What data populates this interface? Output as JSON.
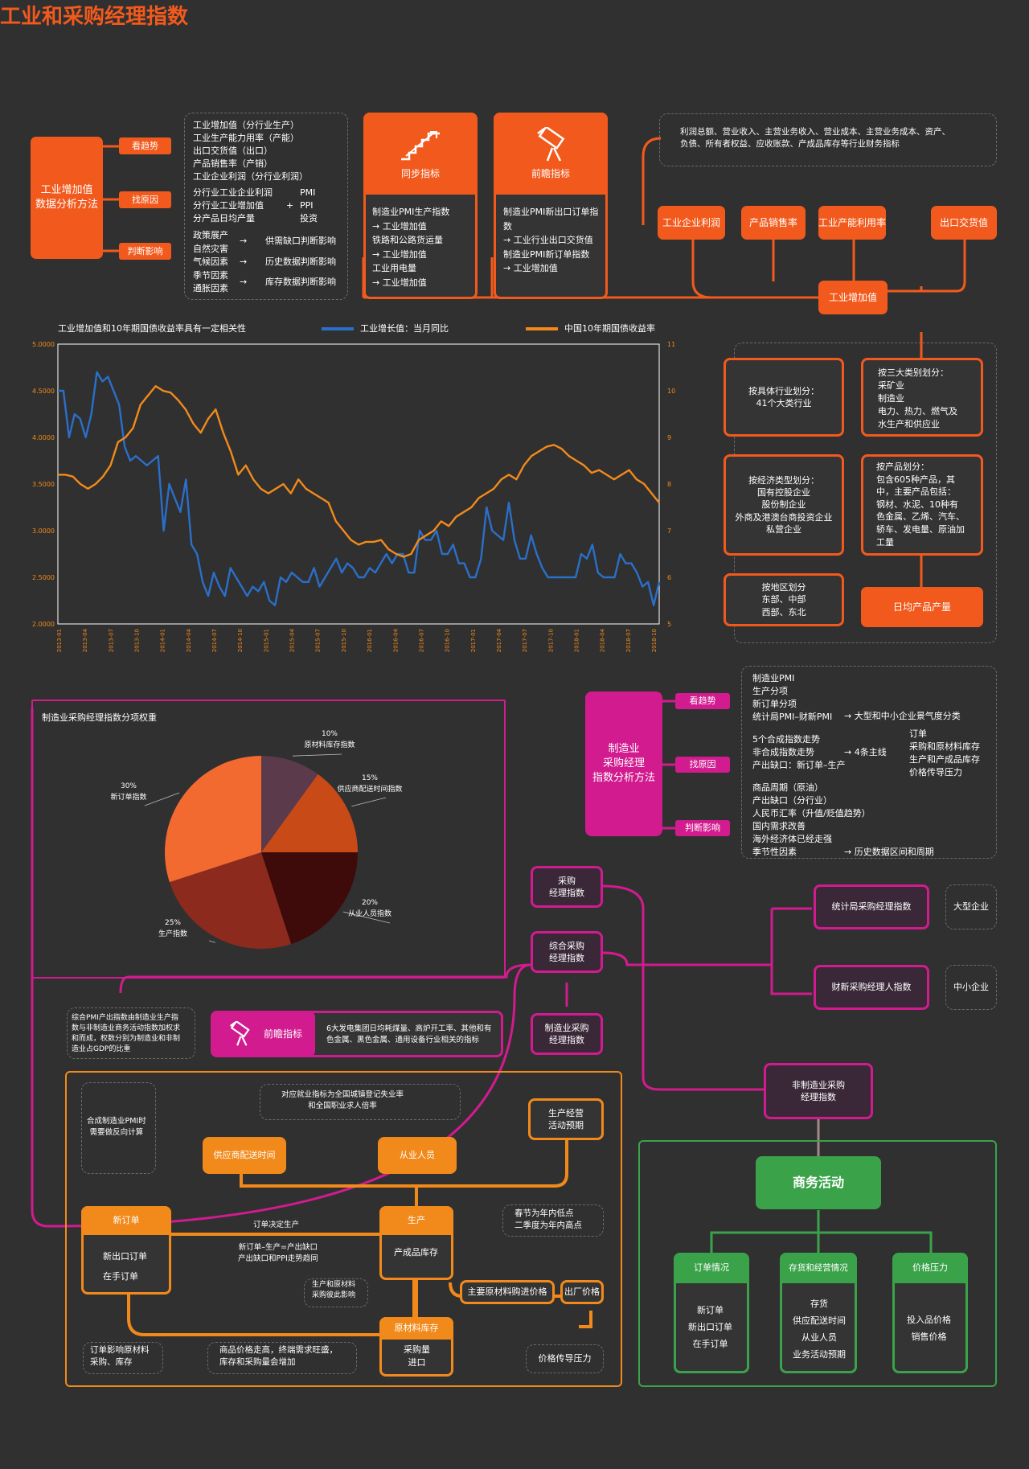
{
  "title": "工业和采购经理指数",
  "s1": {
    "main": [
      "工业增加值",
      "数据分析方法"
    ],
    "tags": [
      "看趋势",
      "找原因",
      "判断影响"
    ],
    "trend": [
      "工业增加值（分行业生产）",
      "工业生产能力用率（产能）",
      "出口交货值（出口）",
      "产品销售率（产销）",
      "工业企业利润（分行业利润）"
    ],
    "reason_left": [
      "分行业工业企业利润",
      "分行业工业增加值",
      "分产品日均产量"
    ],
    "reason_plus": "+",
    "reason_right": [
      "PMI",
      "PPI",
      "投资"
    ],
    "impact": [
      [
        "政策展产",
        ""
      ],
      [
        "自然灾害",
        "供需缺口判断影响"
      ],
      [
        "气候因素",
        ""
      ],
      [
        "季节因素",
        "历史数据判断影响"
      ],
      [
        "通胀因素",
        "库存数据判断影响"
      ]
    ],
    "sync_title": "同步指标",
    "sync_items": [
      "制造业PMI生产指数",
      "→ 工业增加值",
      "铁路和公路货运量",
      "→ 工业增加值",
      "工业用电量",
      "→ 工业增加值"
    ],
    "lead_title": "前瞻指标",
    "lead_items": [
      "制造业PMI新出口订单指数",
      "→ 工业行业出口交货值",
      "制造业PMI新订单指数",
      "→ 工业增加值"
    ],
    "fin_text": [
      "利润总额、营业收入、主营业务收入、营业成本、主营业务成本、资产、",
      "负债、所有者权益、应收账款、产成品库存等行业财务指标"
    ],
    "nodes": [
      "工业企业利润",
      "产品销售率",
      "工业产能利用率",
      "出口交货值"
    ],
    "center": "工业增加值"
  },
  "chart_data": {
    "type": "line",
    "title": "工业增加值和10年期国债收益率具有一定相关性",
    "series": [
      {
        "name": "工业增长值：当月同比",
        "color": "#2a6fc9",
        "axis": "right",
        "values": [
          10.0,
          10.0,
          9.0,
          9.5,
          9.4,
          9.0,
          9.5,
          10.4,
          10.2,
          10.3,
          10.0,
          9.7,
          8.8,
          8.5,
          8.6,
          8.5,
          8.4,
          8.5,
          8.6,
          7.0,
          8.0,
          7.7,
          7.4,
          8.1,
          6.7,
          6.5,
          5.9,
          5.6,
          6.1,
          5.8,
          5.6,
          6.2,
          6.0,
          5.8,
          5.6,
          5.8,
          5.7,
          5.9,
          5.5,
          5.4,
          6.0,
          5.9,
          6.1,
          6.0,
          5.9,
          5.9,
          6.2,
          5.8,
          6.0,
          6.2,
          6.4,
          6.1,
          6.3,
          6.2,
          6.0,
          6.0,
          6.2,
          6.1,
          6.3,
          6.5,
          6.3,
          6.5,
          6.5,
          6.1,
          6.1,
          7.0,
          6.8,
          6.8,
          7.0,
          6.5,
          6.5,
          6.7,
          6.3,
          6.3,
          6.0,
          6.0,
          6.4,
          7.5,
          7.0,
          6.9,
          6.8,
          7.6,
          6.8,
          6.4,
          6.4,
          6.9,
          6.5,
          6.2,
          6.0,
          6.0,
          6.0,
          6.0,
          6.0,
          6.0,
          6.5,
          6.4,
          6.7,
          6.1,
          6.0,
          6.0,
          6.0,
          6.5,
          6.3,
          6.3,
          6.1,
          5.8,
          5.9,
          5.4,
          5.9
        ]
      },
      {
        "name": "中国10年期国债收益率",
        "color": "#f28a1b",
        "axis": "left",
        "values": [
          3.6,
          3.6,
          3.58,
          3.5,
          3.45,
          3.5,
          3.58,
          3.7,
          3.95,
          4.0,
          4.1,
          4.35,
          4.45,
          4.55,
          4.5,
          4.48,
          4.4,
          4.3,
          4.15,
          4.05,
          4.2,
          4.3,
          4.05,
          3.85,
          3.6,
          3.7,
          3.55,
          3.45,
          3.4,
          3.45,
          3.5,
          3.4,
          3.55,
          3.45,
          3.4,
          3.35,
          3.3,
          3.1,
          3.0,
          2.9,
          2.85,
          2.88,
          2.88,
          2.9,
          2.8,
          2.75,
          2.72,
          2.75,
          2.9,
          2.95,
          3.0,
          3.1,
          3.05,
          3.15,
          3.2,
          3.25,
          3.35,
          3.4,
          3.45,
          3.55,
          3.6,
          3.55,
          3.7,
          3.8,
          3.85,
          3.9,
          3.92,
          3.88,
          3.8,
          3.75,
          3.7,
          3.62,
          3.65,
          3.6,
          3.55,
          3.6,
          3.65,
          3.55,
          3.5,
          3.4,
          3.3
        ]
      }
    ],
    "x_ticks": [
      "2013-01",
      "2013-04",
      "2013-07",
      "2013-10",
      "2014-01",
      "2014-04",
      "2014-07",
      "2014-10",
      "2015-01",
      "2015-04",
      "2015-07",
      "2015-10",
      "2016-01",
      "2016-04",
      "2016-07",
      "2016-10",
      "2017-01",
      "2017-04",
      "2017-07",
      "2017-10",
      "2018-01",
      "2018-04",
      "2018-07",
      "2018-10"
    ],
    "y_left": {
      "min": 2.0,
      "max": 5.0,
      "ticks": [
        "2.0000",
        "2.5000",
        "3.0000",
        "3.5000",
        "4.0000",
        "4.5000",
        "5.0000"
      ]
    },
    "y_right": {
      "min": 5,
      "max": 11,
      "ticks": [
        "5",
        "6",
        "7",
        "8",
        "9",
        "10",
        "11"
      ]
    },
    "grid": false,
    "legend": "top"
  },
  "s2": {
    "industry": "按具体行业划分：\n41个大类行业",
    "three": [
      "按三大类别划分：",
      "采矿业",
      "制造业",
      "电力、热力、燃气及",
      "水生产和供应业"
    ],
    "econ": [
      "按经济类型划分：",
      "国有控股企业",
      "股份制企业",
      "外商及港澳台商投资企业",
      "私营企业"
    ],
    "product": [
      "按产品划分：",
      "包含605种产品，其",
      "中，主要产品包括：",
      "钢材、水泥、10种有",
      "色金属、乙烯、汽车、",
      "轿车、发电量、原油加",
      "工量"
    ],
    "region": [
      "按地区划分",
      "东部、中部",
      "西部、东北"
    ],
    "daily": "日均产品产量"
  },
  "pie": {
    "title": "制造业采购经理指数分项权重",
    "slices": [
      {
        "label": "原材料库存指数",
        "pct": 10,
        "value": "10%",
        "color": "#5b3a4c"
      },
      {
        "label": "供应商配送时间指数",
        "pct": 15,
        "value": "15%",
        "color": "#c74a17"
      },
      {
        "label": "从业人员指数",
        "pct": 20,
        "value": "20%",
        "color": "#3e0a0a"
      },
      {
        "label": "生产指数",
        "pct": 25,
        "value": "25%",
        "color": "#8c2a1e"
      },
      {
        "label": "新订单指数",
        "pct": 30,
        "value": "30%",
        "color": "#f26a30"
      }
    ]
  },
  "s3": {
    "main": [
      "制造业",
      "采购经理",
      "指数分析方法"
    ],
    "tags": [
      "看趋势",
      "找原因",
      "判断影响"
    ],
    "trend": [
      "制造业PMI",
      "生产分项",
      "新订单分项"
    ],
    "trend_last": "统计局PMI–财新PMI",
    "trend_arrow": "大型和中小企业景气度分类",
    "reason": [
      "5个合成指数走势",
      "非合成指数走势",
      "产出缺口：新订单–生产"
    ],
    "reason_mid": "4条主线",
    "reason_right": [
      "订单",
      "采购和原材料库存",
      "生产和产成品库存",
      "价格传导压力"
    ],
    "impact": [
      "商品周期（原油）",
      "产出缺口（分行业）",
      "人民币汇率（升值/贬值趋势）",
      "国内需求改善",
      "海外经济体已经走强",
      "季节性因素"
    ],
    "impact_arrow": "历史数据区间和周期"
  },
  "s4": {
    "purchase": [
      "采购",
      "经理指数"
    ],
    "composite": [
      "综合采购",
      "经理指数"
    ],
    "mfg": [
      "制造业采购",
      "经理指数"
    ],
    "nonmfg": [
      "非制造业采购",
      "经理指数"
    ],
    "nbs": "统计局采购经理指数",
    "caixin": "财新采购经理人指数",
    "large": "大型企业",
    "sme": "中小企业",
    "note": [
      "综合PMI产出指数由制造业生产指",
      "数与非制造业商务活动指数加权求",
      "和而成，权数分别为制造业和非制",
      "造业占GDP的比重"
    ],
    "lead_label": "前瞻指标",
    "lead_text": [
      "6大发电集团日均耗煤量、高炉开工率、其他和有",
      "色金属、黑色金属、通用设备行业相关的指标"
    ]
  },
  "s5": {
    "emp_note": [
      "对应就业指标为全国城镇登记失业率",
      "和全国职业求人倍率"
    ],
    "pmi_note": [
      "合成制造业PMI时",
      "需要做反向计算"
    ],
    "supplier": "供应商配送时间",
    "staff": "从业人员",
    "expect": [
      "生产经营",
      "活动预期"
    ],
    "order_head": "新订单",
    "order_body": [
      "新出口订单",
      "在手订单"
    ],
    "order_decide": "订单决定生产",
    "gap": [
      "新订单–生产=产出缺口",
      "产出缺口和PPI走势趋同"
    ],
    "prod_head": "生产",
    "prod_body": "产成品库存",
    "season": [
      "春节为年内低点",
      "二季度为年内高点"
    ],
    "raw_note": [
      "生产和原材料",
      "采购彼此影响"
    ],
    "raw_price": "主要原材料购进价格",
    "out_price": "出厂价格",
    "inv_head": "原材料库存",
    "inv_body": [
      "采购量",
      "进口"
    ],
    "order_affect": [
      "订单影响原材料",
      "采购、库存"
    ],
    "demand": [
      "商品价格走高，终端需求旺盛，",
      "库存和采购量会增加"
    ],
    "price_press": "价格传导压力"
  },
  "s6": {
    "head": "商务活动",
    "c1_head": "订单情况",
    "c1": [
      "新订单",
      "新出口订单",
      "在手订单"
    ],
    "c2_head": "存货和经营情况",
    "c2": [
      "存货",
      "供应配送时间",
      "从业人员",
      "业务活动预期"
    ],
    "c3_head": "价格压力",
    "c3": [
      "投入品价格",
      "销售价格"
    ]
  }
}
